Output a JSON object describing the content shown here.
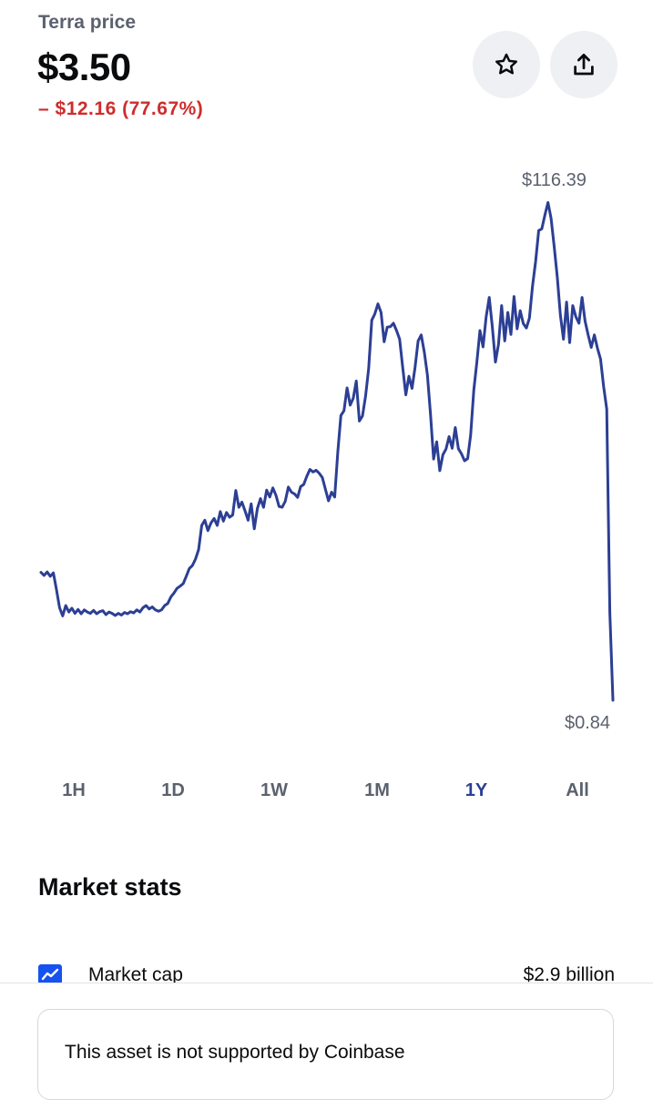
{
  "asset": {
    "title": "Terra price",
    "price": "$3.50",
    "change": "– $12.16 (77.67%)",
    "change_color": "#cf2c2c"
  },
  "actions": {
    "watchlist_icon": "star-icon",
    "share_icon": "share-icon"
  },
  "chart": {
    "high_label": "$116.39",
    "low_label": "$0.84",
    "line_color": "#2c3f94"
  },
  "chart_data": {
    "type": "line",
    "title": "",
    "xlabel": "",
    "ylabel": "",
    "series": [
      {
        "name": "",
        "values": [
          30.5,
          29.8,
          30.6,
          29.6,
          30.4,
          26.5,
          22.3,
          20.4,
          22.8,
          21.3,
          22.2,
          21.0,
          21.9,
          20.9,
          21.8,
          21.3,
          21.0,
          21.7,
          20.9,
          21.4,
          21.6,
          20.7,
          21.3,
          21.0,
          20.5,
          21.0,
          20.6,
          21.2,
          20.9,
          21.4,
          21.1,
          21.8,
          21.3,
          22.3,
          22.8,
          22.0,
          22.5,
          21.8,
          21.5,
          21.8,
          22.8,
          23.3,
          24.8,
          25.7,
          26.8,
          27.3,
          27.9,
          29.6,
          31.4,
          32.1,
          33.6,
          35.8,
          41.4,
          42.6,
          40.2,
          42.0,
          43.0,
          41.4,
          44.6,
          42.4,
          44.4,
          43.3,
          43.8,
          49.5,
          45.6,
          46.8,
          44.8,
          42.6,
          46.4,
          40.6,
          45.3,
          47.6,
          45.6,
          49.6,
          48.0,
          50.1,
          48.4,
          45.8,
          45.6,
          47.0,
          50.3,
          49.1,
          48.7,
          47.9,
          50.4,
          50.9,
          52.8,
          54.4,
          53.8,
          54.2,
          53.5,
          52.5,
          49.8,
          47.1,
          49.1,
          48.0,
          58.4,
          66.9,
          68.0,
          73.3,
          69.3,
          70.9,
          74.9,
          65.6,
          66.8,
          71.4,
          77.8,
          89.0,
          90.5,
          92.8,
          90.8,
          84.0,
          87.4,
          87.5,
          88.3,
          86.6,
          84.6,
          78.0,
          71.7,
          76.0,
          73.2,
          78.0,
          84.2,
          85.6,
          81.6,
          76.3,
          67.2,
          56.8,
          60.8,
          54.1,
          57.8,
          59.1,
          62.0,
          59.3,
          64.1,
          59.2,
          58.0,
          56.4,
          56.9,
          62.4,
          72.7,
          79.3,
          86.6,
          82.8,
          89.8,
          94.3,
          87.4,
          79.3,
          83.5,
          92.4,
          84.2,
          90.8,
          85.7,
          94.5,
          87.0,
          91.2,
          88.2,
          87.2,
          89.5,
          96.9,
          102.6,
          109.8,
          110.2,
          113.4,
          116.3,
          112.6,
          106.1,
          99.0,
          90.2,
          84.6,
          93.2,
          83.8,
          92.4,
          89.8,
          88.3,
          94.3,
          88.8,
          85.6,
          82.7,
          85.6,
          82.5,
          80.0,
          73.6,
          68.4,
          21.2,
          0.84
        ]
      }
    ],
    "range_label": "1Y",
    "high": 116.39,
    "low": 0.84,
    "ylim": [
      0.84,
      116.39
    ],
    "grid": false,
    "legend": "none"
  },
  "ranges": [
    {
      "label": "1H",
      "active": false
    },
    {
      "label": "1D",
      "active": false
    },
    {
      "label": "1W",
      "active": false
    },
    {
      "label": "1M",
      "active": false
    },
    {
      "label": "1Y",
      "active": true
    },
    {
      "label": "All",
      "active": false
    }
  ],
  "market_stats": {
    "title": "Market stats",
    "rows": [
      {
        "icon": "chart-icon",
        "label": "Market cap",
        "value": "$2.9 billion"
      }
    ]
  },
  "notice": {
    "text": "This asset is not supported by Coinbase"
  }
}
